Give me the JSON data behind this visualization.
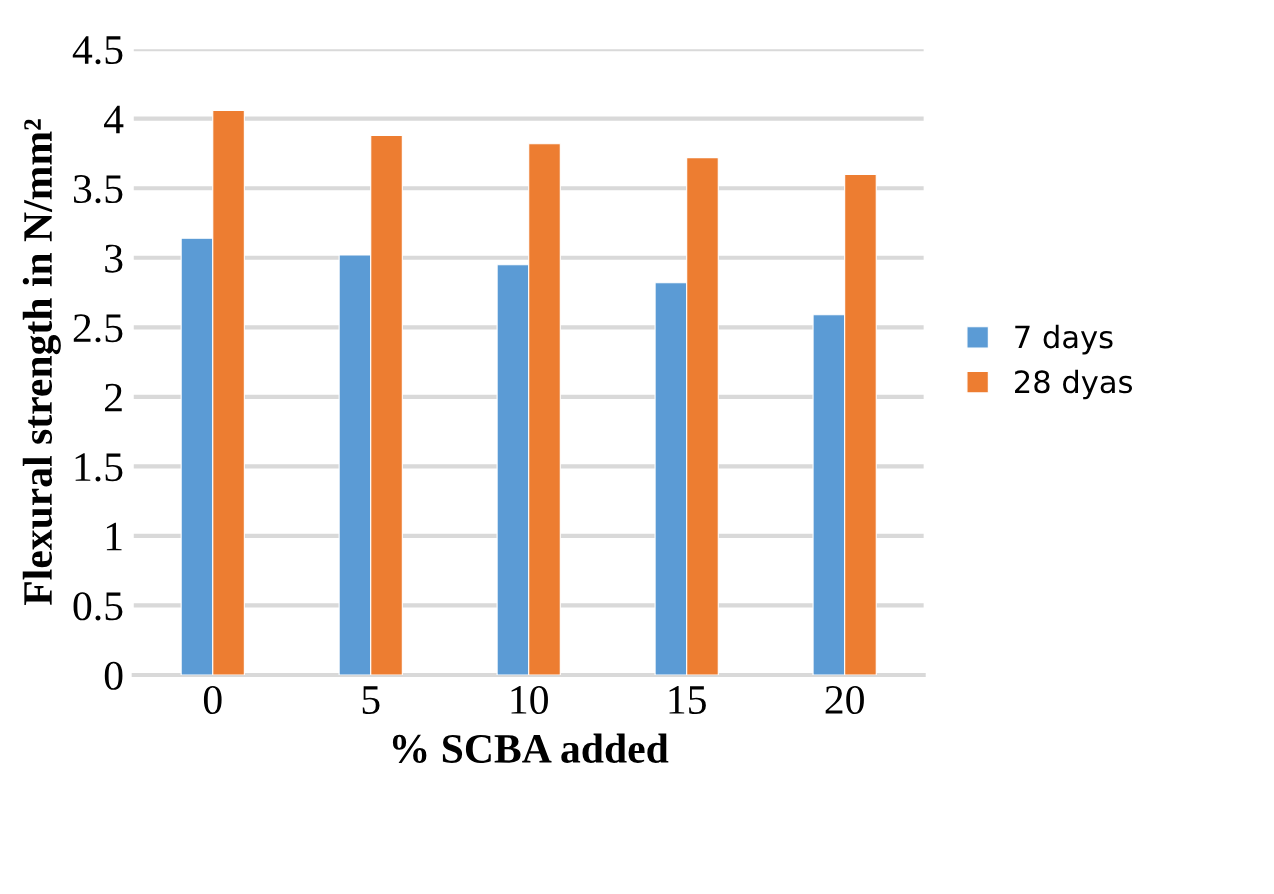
{
  "chart_data": {
    "type": "bar",
    "xlabel": "% SCBA added",
    "ylabel": "Flexural strength in N/mm²",
    "categories": [
      "0",
      "5",
      "10",
      "15",
      "20"
    ],
    "series": [
      {
        "name": "7 days",
        "color": "#5b9bd5",
        "values": [
          3.14,
          3.02,
          2.95,
          2.82,
          2.59
        ]
      },
      {
        "name": "28 dyas",
        "color": "#ed7d31",
        "values": [
          4.06,
          3.88,
          3.82,
          3.72,
          3.6
        ]
      }
    ],
    "ylim": [
      0,
      4.5
    ],
    "yticks": [
      0,
      0.5,
      1,
      1.5,
      2,
      2.5,
      3,
      3.5,
      4,
      4.5
    ],
    "grid": "y",
    "legend": "right"
  }
}
